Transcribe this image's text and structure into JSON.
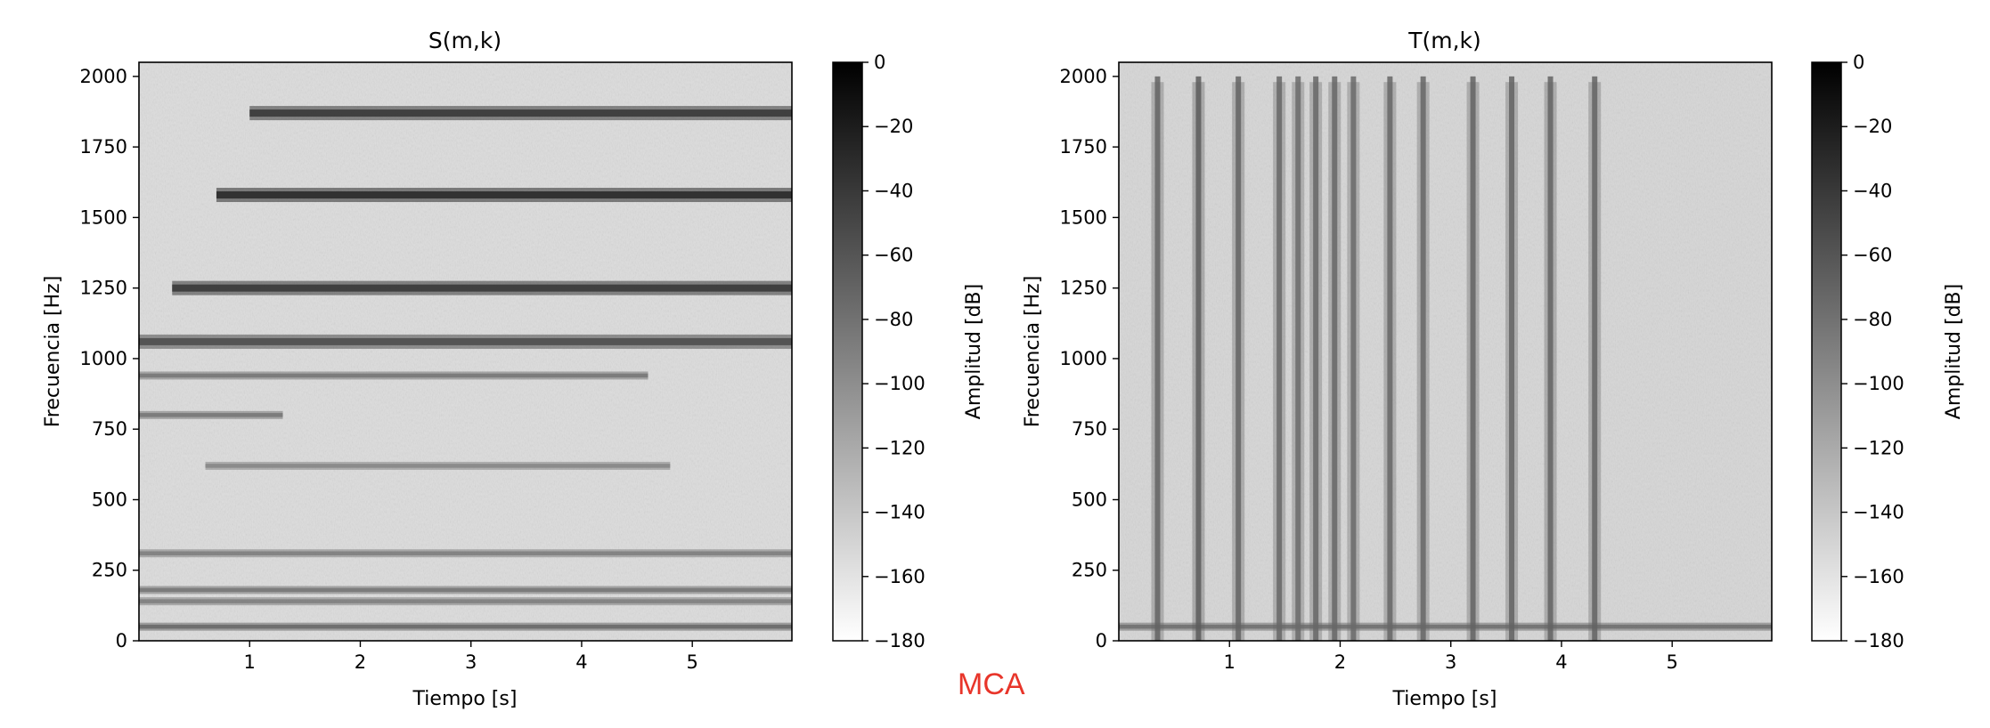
{
  "watermark": {
    "text": "MCA",
    "color": "#e8352a"
  },
  "chart_data": [
    {
      "type": "heatmap",
      "title": "S(m,k)",
      "xlabel": "Tiempo [s]",
      "ylabel": "Frecuencia [Hz]",
      "xlim": [
        0,
        5.9
      ],
      "ylim": [
        0,
        2050
      ],
      "xticks": [
        1,
        2,
        3,
        4,
        5
      ],
      "yticks": [
        0,
        250,
        500,
        750,
        1000,
        1250,
        1500,
        1750,
        2000
      ],
      "colorbar": {
        "label": "Amplitud [dB]",
        "range": [
          -180,
          0
        ],
        "ticks": [
          0,
          -20,
          -40,
          -60,
          -80,
          -100,
          -120,
          -140,
          -160,
          -180
        ],
        "colormap": "gray_r"
      },
      "background_db": -110,
      "horizontal_bands": [
        {
          "freq_hz": 1060,
          "start_s": 0.0,
          "end_s": 5.9,
          "level_db": -55
        },
        {
          "freq_hz": 1250,
          "start_s": 0.3,
          "end_s": 5.9,
          "level_db": -40
        },
        {
          "freq_hz": 1580,
          "start_s": 0.7,
          "end_s": 5.9,
          "level_db": -30
        },
        {
          "freq_hz": 1870,
          "start_s": 1.0,
          "end_s": 5.9,
          "level_db": -40
        },
        {
          "freq_hz": 940,
          "start_s": 0.0,
          "end_s": 4.6,
          "level_db": -85
        },
        {
          "freq_hz": 800,
          "start_s": 0.0,
          "end_s": 1.3,
          "level_db": -85
        },
        {
          "freq_hz": 620,
          "start_s": 0.6,
          "end_s": 4.8,
          "level_db": -95
        },
        {
          "freq_hz": 310,
          "start_s": 0.0,
          "end_s": 5.9,
          "level_db": -90
        },
        {
          "freq_hz": 180,
          "start_s": 0.0,
          "end_s": 5.9,
          "level_db": -85
        },
        {
          "freq_hz": 140,
          "start_s": 0.0,
          "end_s": 5.9,
          "level_db": -90
        },
        {
          "freq_hz": 50,
          "start_s": 0.0,
          "end_s": 5.9,
          "level_db": -75
        }
      ],
      "vertical_bursts": []
    },
    {
      "type": "heatmap",
      "title": "T(m,k)",
      "xlabel": "Tiempo [s]",
      "ylabel": "Frecuencia [Hz]",
      "xlim": [
        0,
        5.9
      ],
      "ylim": [
        0,
        2050
      ],
      "xticks": [
        1,
        2,
        3,
        4,
        5
      ],
      "yticks": [
        0,
        250,
        500,
        750,
        1000,
        1250,
        1500,
        1750,
        2000
      ],
      "colorbar": {
        "label": "Amplitud [dB]",
        "range": [
          -180,
          0
        ],
        "ticks": [
          0,
          -20,
          -40,
          -60,
          -80,
          -100,
          -120,
          -140,
          -160,
          -180
        ],
        "colormap": "gray_r"
      },
      "background_db": -110,
      "horizontal_bands": [
        {
          "freq_hz": 50,
          "start_s": 0.0,
          "end_s": 5.9,
          "level_db": -80
        }
      ],
      "vertical_bursts": [
        {
          "time_s": 0.35,
          "level_db": -70
        },
        {
          "time_s": 0.72,
          "level_db": -65
        },
        {
          "time_s": 1.08,
          "level_db": -70
        },
        {
          "time_s": 1.45,
          "level_db": -72
        },
        {
          "time_s": 1.62,
          "level_db": -75
        },
        {
          "time_s": 1.78,
          "level_db": -72
        },
        {
          "time_s": 1.95,
          "level_db": -72
        },
        {
          "time_s": 2.12,
          "level_db": -75
        },
        {
          "time_s": 2.45,
          "level_db": -72
        },
        {
          "time_s": 2.75,
          "level_db": -72
        },
        {
          "time_s": 3.2,
          "level_db": -70
        },
        {
          "time_s": 3.55,
          "level_db": -70
        },
        {
          "time_s": 3.9,
          "level_db": -70
        },
        {
          "time_s": 4.3,
          "level_db": -70
        }
      ]
    }
  ]
}
